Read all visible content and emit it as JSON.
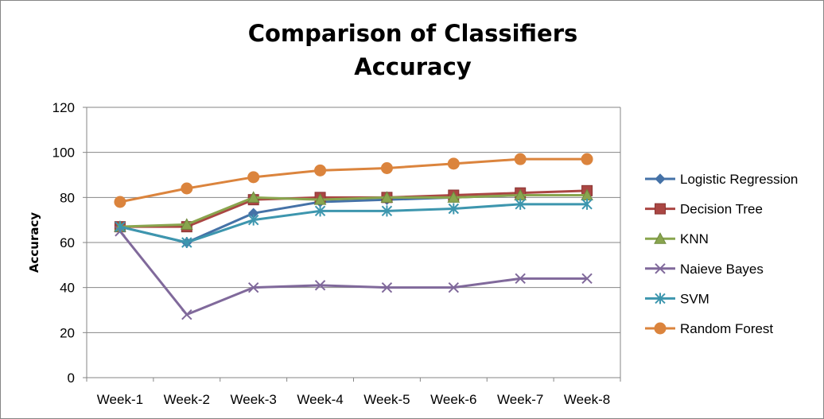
{
  "chart_data": {
    "type": "line",
    "title_lines": [
      "Comparison of Classifiers",
      "Accuracy"
    ],
    "xlabel": "",
    "ylabel": "Accuracy",
    "ylim": [
      0,
      120
    ],
    "yticks": [
      0,
      20,
      40,
      60,
      80,
      100,
      120
    ],
    "grid": "horizontal",
    "legend_position": "right",
    "categories": [
      "Week-1",
      "Week-2",
      "Week-3",
      "Week-4",
      "Week-5",
      "Week-6",
      "Week-7",
      "Week-8"
    ],
    "series": [
      {
        "name": "Logistic Regression",
        "color": "#4572A7",
        "marker": "diamond",
        "values": [
          67,
          60,
          73,
          78,
          79,
          80,
          81,
          81
        ]
      },
      {
        "name": "Decision Tree",
        "color": "#AA4643",
        "marker": "square",
        "values": [
          67,
          67,
          79,
          80,
          80,
          81,
          82,
          83
        ]
      },
      {
        "name": "KNN",
        "color": "#89A54E",
        "marker": "triangle",
        "values": [
          67,
          68,
          80,
          79,
          80,
          80,
          81,
          81
        ]
      },
      {
        "name": "Naieve Bayes",
        "color": "#80699B",
        "marker": "x",
        "values": [
          65,
          28,
          40,
          41,
          40,
          40,
          44,
          44
        ]
      },
      {
        "name": "SVM",
        "color": "#3D96AE",
        "marker": "star",
        "values": [
          67,
          60,
          70,
          74,
          74,
          75,
          77,
          77
        ]
      },
      {
        "name": "Random Forest",
        "color": "#DB843D",
        "marker": "circle",
        "values": [
          78,
          84,
          89,
          92,
          93,
          95,
          97,
          97
        ]
      }
    ]
  }
}
